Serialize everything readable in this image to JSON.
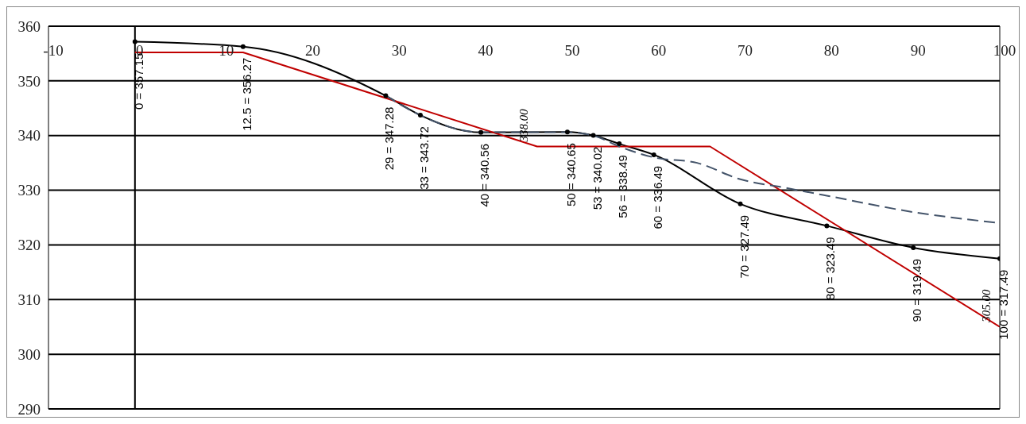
{
  "chart_data": {
    "type": "line",
    "xlim": [
      -10,
      100
    ],
    "xticks": [
      -10,
      0,
      10,
      20,
      30,
      40,
      50,
      60,
      70,
      80,
      90,
      100
    ],
    "ylim": [
      290,
      360
    ],
    "yticks": [
      290,
      300,
      310,
      320,
      330,
      340,
      350,
      360
    ],
    "grid": "y",
    "ref_lines": [
      {
        "axis": "x",
        "value": 0,
        "color": "#000000"
      }
    ],
    "series": [
      {
        "color": "#000000",
        "marker": "circle",
        "line_style": "solid",
        "x": [
          0,
          12.5,
          29,
          33,
          40,
          50,
          53,
          56,
          60,
          70,
          80,
          90,
          100
        ],
        "values": [
          357.15,
          356.27,
          347.28,
          343.72,
          340.56,
          340.65,
          340.02,
          338.49,
          336.49,
          327.49,
          323.49,
          319.49,
          317.49
        ],
        "value_labels": [
          "0 = 357.15",
          "12.5 = 356.27",
          "29 = 347.28",
          "33 = 343.72",
          "40 = 340.56",
          "50 = 340.65",
          "53 = 340.02",
          "56 = 338.49",
          "60 = 336.49",
          "70 = 327.49",
          "80 = 323.49",
          "90 = 319.49",
          "100 = 317.49"
        ]
      },
      {
        "color": "#c00000",
        "marker": "none",
        "line_style": "solid",
        "x": [
          0,
          12.5,
          46.5,
          66.5,
          100
        ],
        "values": [
          355.2,
          355.2,
          338.0,
          338.0,
          305.0
        ],
        "value_labels": [
          null,
          null,
          "338.00",
          null,
          "305.00"
        ]
      },
      {
        "color": "#44546a",
        "marker": "none",
        "line_style": "dashed",
        "x": [
          29,
          33,
          40,
          50,
          53,
          56,
          60,
          65,
          70,
          75,
          80,
          90,
          100
        ],
        "values": [
          347.3,
          343.7,
          340.6,
          340.6,
          340.0,
          338,
          336,
          335,
          332,
          330.5,
          329,
          326,
          324
        ]
      }
    ]
  }
}
